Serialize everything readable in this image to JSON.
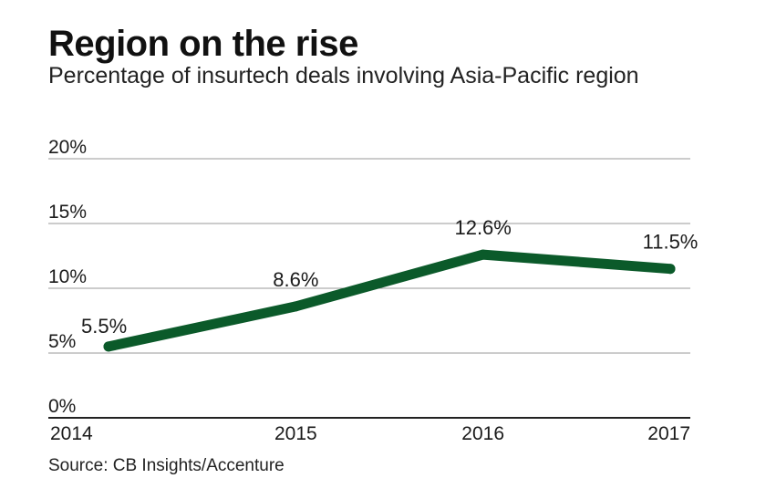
{
  "title": "Region on the rise",
  "subtitle": "Percentage of insurtech deals involving Asia-Pacific region",
  "source": "Source: CB Insights/Accenture",
  "colors": {
    "line": "#0b5a2a",
    "grid": "#9a9a9a",
    "axis": "#222222"
  },
  "chart_data": {
    "type": "line",
    "title": "Region on the rise",
    "subtitle": "Percentage of insurtech deals involving Asia-Pacific region",
    "categories": [
      "2014",
      "2015",
      "2016",
      "2017"
    ],
    "values": [
      5.5,
      8.6,
      12.6,
      11.5
    ],
    "data_labels": [
      "5.5%",
      "8.6%",
      "12.6%",
      "11.5%"
    ],
    "ylim": [
      0,
      20
    ],
    "yticks": [
      0,
      5,
      10,
      15,
      20
    ],
    "ytick_labels": [
      "0%",
      "5%",
      "10%",
      "15%",
      "20%"
    ],
    "xlabel": "",
    "ylabel": "",
    "grid": true,
    "legend": "none"
  }
}
